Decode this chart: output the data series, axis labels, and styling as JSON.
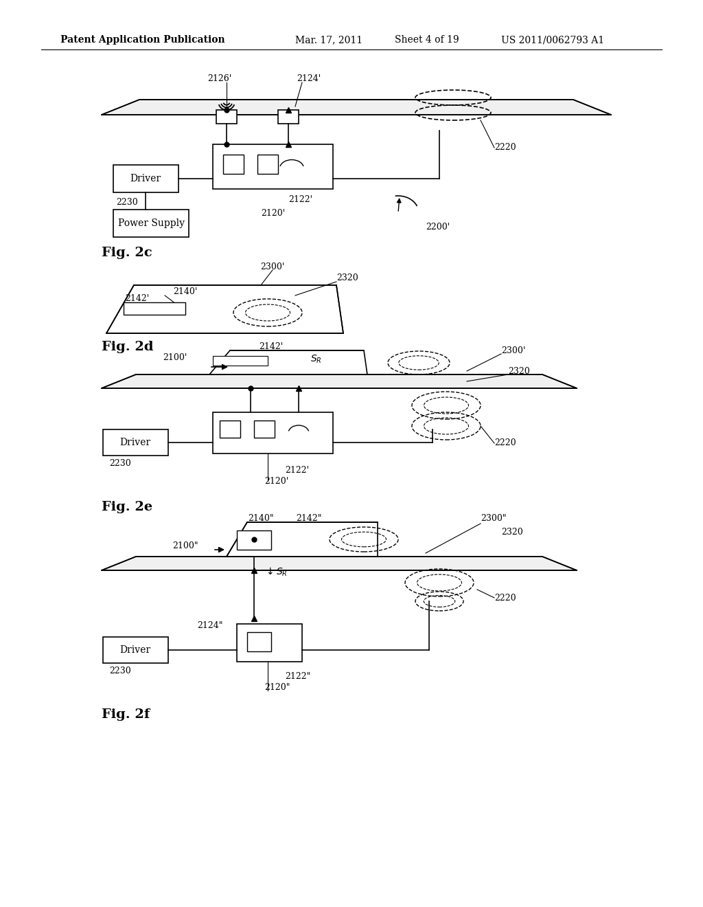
{
  "bg_color": "#ffffff",
  "header_text": "Patent Application Publication",
  "header_date": "Mar. 17, 2011",
  "header_sheet": "Sheet 4 of 19",
  "header_patent": "US 2011/0062793 A1",
  "fig_labels": [
    "Fig. 2c",
    "Fig. 2d",
    "Fig. 2f"
  ]
}
